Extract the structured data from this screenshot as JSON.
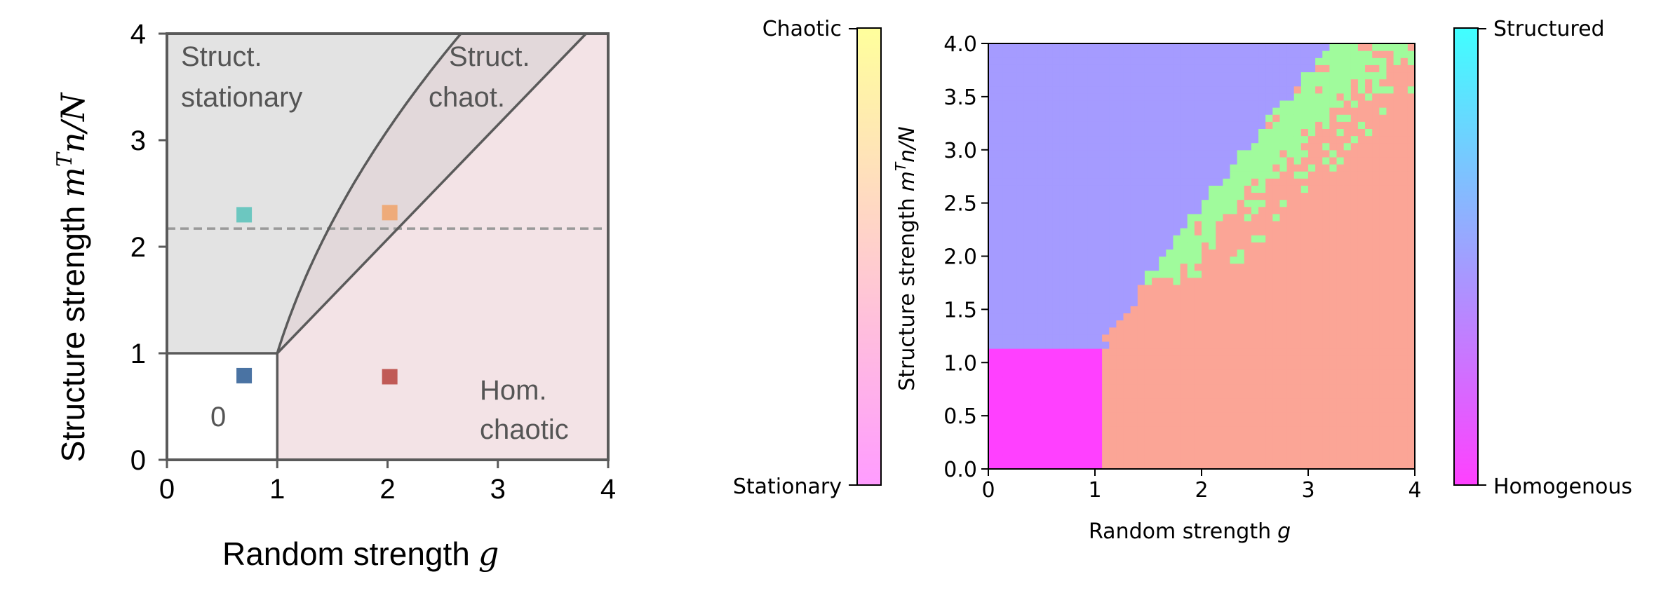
{
  "chart_data": [
    {
      "type": "diagram",
      "xlabel": "Random strength",
      "xlabel_symbol": "g",
      "ylabel": "Structure strength",
      "ylabel_symbol": "m",
      "ylabel_symbol_sup": "T",
      "ylabel_symbol_rest": "n/N",
      "xlim": [
        0,
        4
      ],
      "ylim": [
        0,
        4
      ],
      "xticks": [
        "0",
        "1",
        "2",
        "3",
        "4"
      ],
      "yticks": [
        "0",
        "1",
        "2",
        "3",
        "4"
      ],
      "grid": false,
      "dashed_line_y": 2.17,
      "regions": [
        {
          "lines": [
            "Struct.",
            "stationary"
          ],
          "color": "#e3e3e3"
        },
        {
          "lines": [
            "Struct.",
            "chaot."
          ],
          "color": "#e2d8da"
        },
        {
          "lines": [
            "Hom.",
            "chaotic"
          ],
          "color": "#f3e3e6"
        },
        {
          "lines": [
            "0"
          ],
          "color": "#ffffff"
        }
      ],
      "markers": [
        {
          "x": 0.7,
          "y": 2.3,
          "color": "#6cc7c0"
        },
        {
          "x": 2.02,
          "y": 2.32,
          "color": "#eeab7a"
        },
        {
          "x": 0.7,
          "y": 0.79,
          "color": "#4a73a3"
        },
        {
          "x": 2.02,
          "y": 0.78,
          "color": "#c05a56"
        }
      ]
    },
    {
      "type": "heatmap",
      "xlabel": "Random strength",
      "xlabel_symbol": "g",
      "ylabel": "Structure strength",
      "ylabel_symbol": "m",
      "ylabel_symbol_sup": "T",
      "ylabel_symbol_rest": "n/N",
      "xlim": [
        0,
        4
      ],
      "ylim": [
        0,
        4
      ],
      "xticks": [
        "0",
        "1",
        "2",
        "3",
        "4"
      ],
      "yticks": [
        "0.0",
        "0.5",
        "1.0",
        "1.5",
        "2.0",
        "2.5",
        "3.0",
        "3.5",
        "4.0"
      ],
      "phases": [
        {
          "name": "structured stationary",
          "color": "#a59bff"
        },
        {
          "name": "structured chaotic",
          "color": "#a0fb9c"
        },
        {
          "name": "homogenous chaotic",
          "color": "#fba596"
        },
        {
          "name": "homogenous stationary",
          "color": "#ff40ff"
        }
      ],
      "zero_region": {
        "g_max": 1.05,
        "y_max": 1.12
      },
      "colorbar_left": {
        "top_label": "Chaotic",
        "bottom_label": "Stationary",
        "top_color": "#ffff9c",
        "bottom_color": "#ff9cff"
      },
      "colorbar_right": {
        "top_label": "Structured",
        "bottom_label": "Homogenous",
        "top_color": "#40ffff",
        "bottom_color": "#ff40ff"
      }
    }
  ]
}
